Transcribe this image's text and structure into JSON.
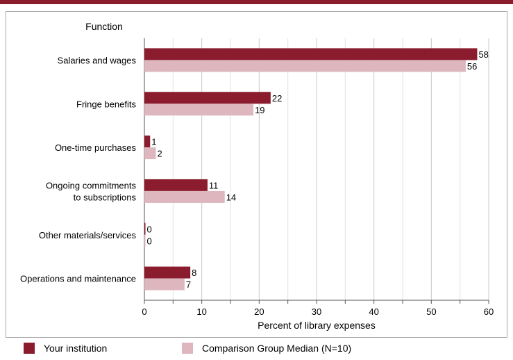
{
  "chart_data": {
    "type": "bar",
    "orientation": "horizontal",
    "y_axis_title": "Function",
    "xlabel": "Percent of library expenses",
    "xlim": [
      0,
      60
    ],
    "x_ticks": [
      0,
      10,
      20,
      30,
      40,
      50,
      60
    ],
    "grid": true,
    "categories": [
      [
        "Salaries and wages"
      ],
      [
        "Fringe benefits"
      ],
      [
        "One-time purchases"
      ],
      [
        "Ongoing commitments",
        "to subscriptions"
      ],
      [
        "Other materials/services"
      ],
      [
        "Operations and maintenance"
      ]
    ],
    "series": [
      {
        "name": "Your institution",
        "color": "#8a1c2e",
        "values": [
          58,
          22,
          1,
          11,
          0,
          8
        ]
      },
      {
        "name": "Comparison Group Median (N=10)",
        "color": "#ddb6be",
        "values": [
          56,
          19,
          2,
          14,
          0,
          7
        ]
      }
    ],
    "legend_position": "bottom"
  }
}
